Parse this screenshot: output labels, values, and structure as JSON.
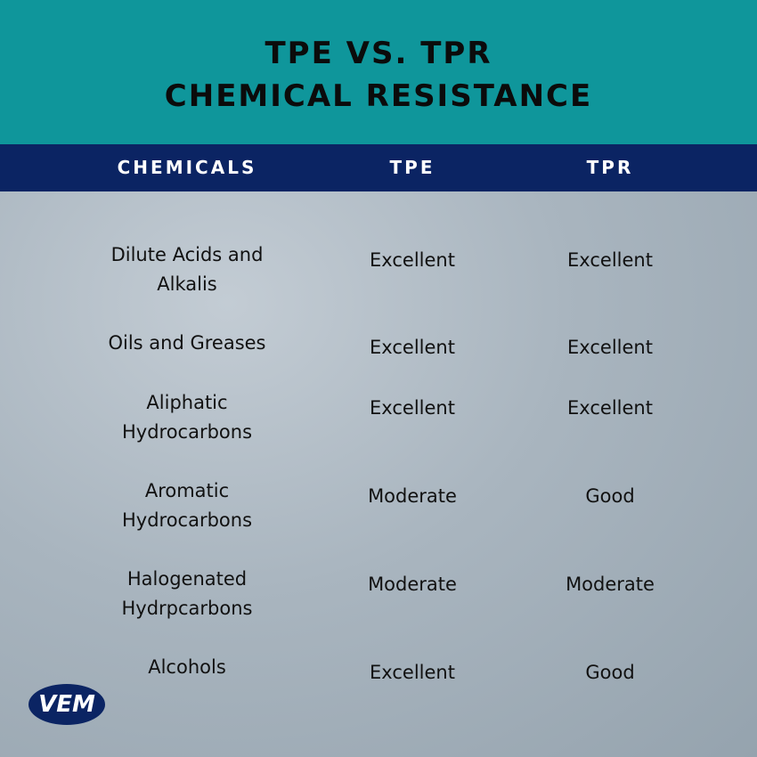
{
  "header": {
    "title_lines": [
      "TPE VS. TPR",
      "CHEMICAL RESISTANCE"
    ]
  },
  "table": {
    "columns": [
      "CHEMICALS",
      "TPE",
      "TPR"
    ],
    "rows": [
      [
        "Dilute Acids and Alkalis",
        "Excellent",
        "Excellent"
      ],
      [
        "Oils and Greases",
        "Excellent",
        "Excellent"
      ],
      [
        "Aliphatic Hydrocarbons",
        "Excellent",
        "Excellent"
      ],
      [
        "Aromatic Hydrocarbons",
        "Moderate",
        "Good"
      ],
      [
        "Halogenated Hydrpcarbons",
        "Moderate",
        "Moderate"
      ],
      [
        "Alcohols",
        "Excellent",
        "Good"
      ]
    ]
  },
  "logo": {
    "text": "VEM"
  }
}
